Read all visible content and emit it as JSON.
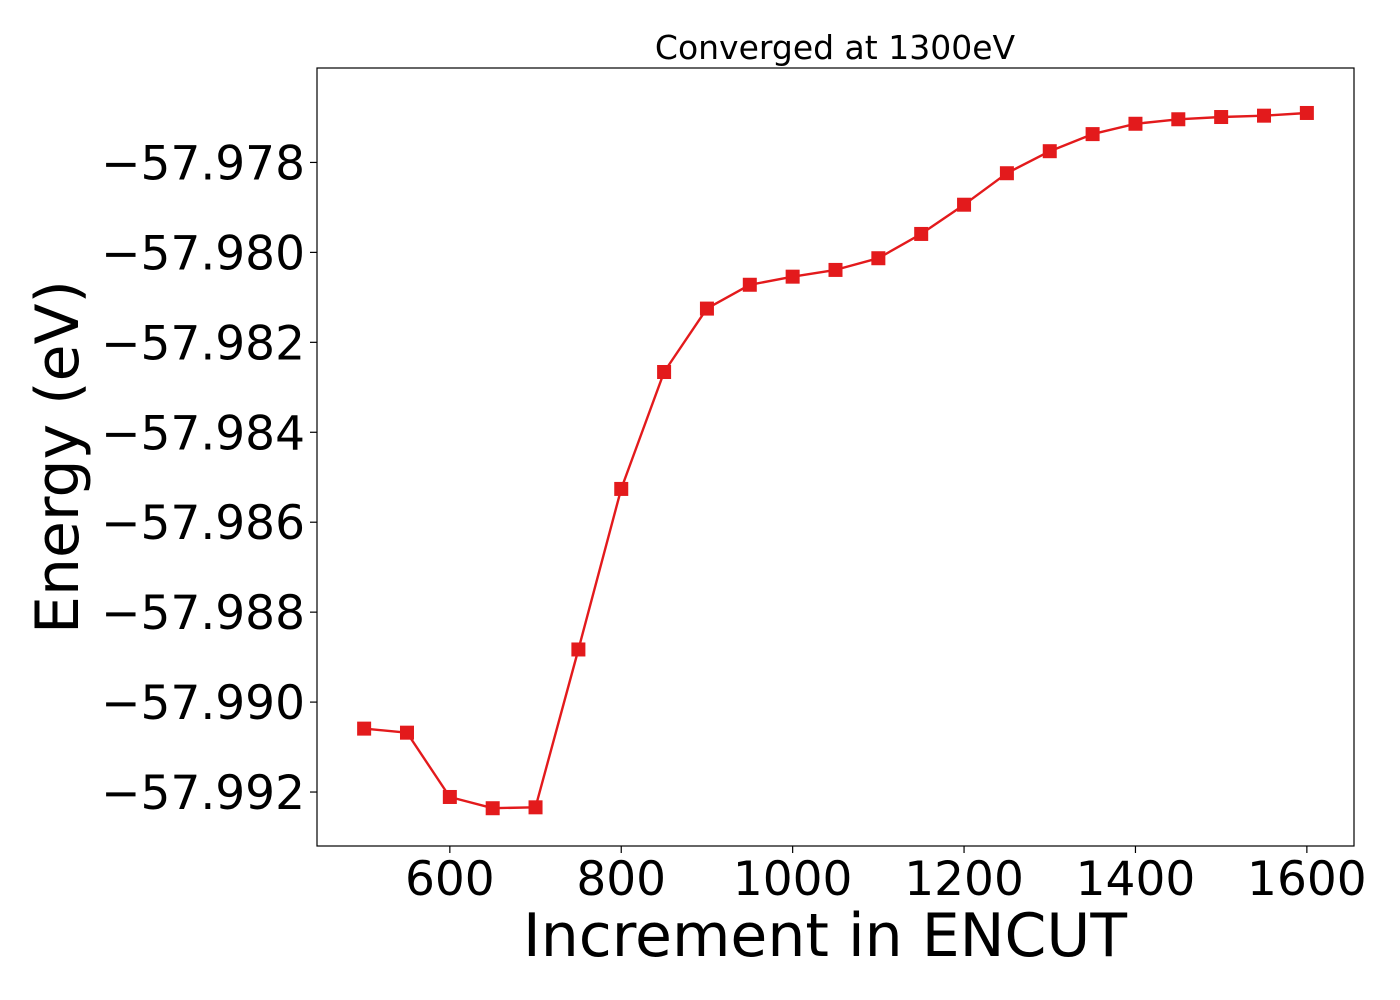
{
  "chart_data": {
    "type": "line",
    "title": "Converged at 1300eV",
    "xlabel": "Increment in ENCUT",
    "ylabel": "Energy (eV)",
    "xlim": [
      445,
      1655
    ],
    "ylim": [
      -57.9932,
      -57.9759
    ],
    "xticks": [
      600,
      800,
      1000,
      1200,
      1400,
      1600
    ],
    "yticks": [
      -57.978,
      -57.98,
      -57.982,
      -57.984,
      -57.986,
      -57.988,
      -57.99,
      -57.992
    ],
    "ytick_labels": [
      "−57.978",
      "−57.980",
      "−57.982",
      "−57.984",
      "−57.986",
      "−57.988",
      "−57.990",
      "−57.992"
    ],
    "grid": false,
    "legend": false,
    "series": [
      {
        "color": "#e31a1c",
        "marker": "square",
        "x": [
          500,
          550,
          600,
          650,
          700,
          750,
          800,
          850,
          900,
          950,
          1000,
          1050,
          1100,
          1150,
          1200,
          1250,
          1300,
          1350,
          1400,
          1450,
          1500,
          1550,
          1600
        ],
        "y": [
          -57.99059,
          -57.99068,
          -57.99211,
          -57.99236,
          -57.99234,
          -57.98883,
          -57.98526,
          -57.98266,
          -57.98125,
          -57.98072,
          -57.98054,
          -57.98039,
          -57.98013,
          -57.97959,
          -57.97894,
          -57.97824,
          -57.97775,
          -57.97737,
          -57.97714,
          -57.97704,
          -57.97699,
          -57.97696,
          -57.9769
        ]
      }
    ]
  }
}
